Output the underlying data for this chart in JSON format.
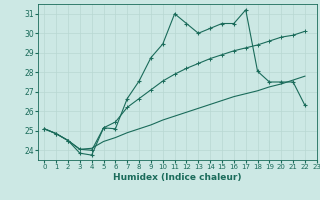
{
  "xlabel": "Humidex (Indice chaleur)",
  "background_color": "#cce8e4",
  "grid_color": "#c0d8d4",
  "line_color": "#1a6b5a",
  "xlim": [
    -0.5,
    23
  ],
  "ylim": [
    23.5,
    31.5
  ],
  "yticks": [
    24,
    25,
    26,
    27,
    28,
    29,
    30,
    31
  ],
  "xticks": [
    0,
    1,
    2,
    3,
    4,
    5,
    6,
    7,
    8,
    9,
    10,
    11,
    12,
    13,
    14,
    15,
    16,
    17,
    18,
    19,
    20,
    21,
    22,
    23
  ],
  "line1_x": [
    0,
    1,
    2,
    3,
    4,
    5,
    6,
    7,
    8,
    9,
    10,
    11,
    12,
    13,
    14,
    15,
    16,
    17,
    18,
    19,
    20,
    21,
    22
  ],
  "line1_y": [
    25.1,
    24.85,
    24.5,
    23.85,
    23.75,
    25.15,
    25.1,
    26.65,
    27.55,
    28.75,
    29.45,
    31.0,
    30.5,
    30.0,
    30.25,
    30.5,
    30.5,
    31.2,
    28.05,
    27.5,
    27.5,
    27.5,
    26.3
  ],
  "line2_x": [
    0,
    1,
    2,
    3,
    4,
    5,
    6,
    7,
    8,
    9,
    10,
    11,
    12,
    13,
    14,
    15,
    16,
    17,
    18,
    19,
    20,
    21,
    22
  ],
  "line2_y": [
    25.1,
    24.85,
    24.5,
    24.05,
    24.0,
    25.15,
    25.45,
    26.2,
    26.65,
    27.1,
    27.55,
    27.9,
    28.2,
    28.45,
    28.7,
    28.9,
    29.1,
    29.25,
    29.4,
    29.6,
    29.8,
    29.9,
    30.1
  ],
  "line3_x": [
    0,
    1,
    2,
    3,
    4,
    5,
    6,
    7,
    8,
    9,
    10,
    11,
    12,
    13,
    14,
    15,
    16,
    17,
    18,
    19,
    20,
    21,
    22
  ],
  "line3_y": [
    25.1,
    24.85,
    24.5,
    24.05,
    24.1,
    24.45,
    24.65,
    24.9,
    25.1,
    25.3,
    25.55,
    25.75,
    25.95,
    26.15,
    26.35,
    26.55,
    26.75,
    26.9,
    27.05,
    27.25,
    27.4,
    27.6,
    27.8
  ]
}
